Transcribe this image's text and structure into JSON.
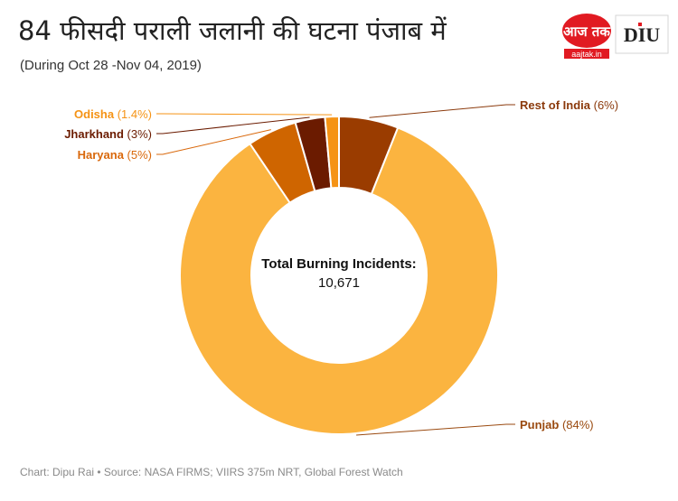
{
  "header": {
    "title": "84 फीसदी पराली जलानी की घटना पंजाब में",
    "subtitle": "(During Oct 28 -Nov 04, 2019)"
  },
  "logos": {
    "aajtak": {
      "wordmark": "आज तक",
      "url_text": "aajtak.in",
      "color": "#e11a22"
    },
    "diu": {
      "wordmark": "DIU",
      "color": "#e11a22"
    }
  },
  "chart_data": {
    "type": "pie",
    "variant": "donut",
    "center_label": "Total Burning Incidents:",
    "center_value": "10,671",
    "slices": [
      {
        "name": "Rest of India",
        "pct_label": "(6%)",
        "value": 6,
        "color": "#9a3c00",
        "label_color": "#8b3a0c"
      },
      {
        "name": "Punjab",
        "pct_label": "(84%)",
        "value": 84,
        "color": "#fbb440",
        "label_color": "#9a4a10"
      },
      {
        "name": "Haryana",
        "pct_label": "(5%)",
        "value": 5,
        "color": "#cf6500",
        "label_color": "#d9680b"
      },
      {
        "name": "Jharkhand",
        "pct_label": "(3%)",
        "value": 3,
        "color": "#6b1b00",
        "label_color": "#6b1b00"
      },
      {
        "name": "Odisha",
        "pct_label": "(1.4%)",
        "value": 1.4,
        "color": "#f59315",
        "label_color": "#f59315"
      }
    ]
  },
  "footer": {
    "source": "Chart: Dipu Rai • Source: NASA FIRMS; VIIRS 375m NRT, Global Forest Watch"
  }
}
